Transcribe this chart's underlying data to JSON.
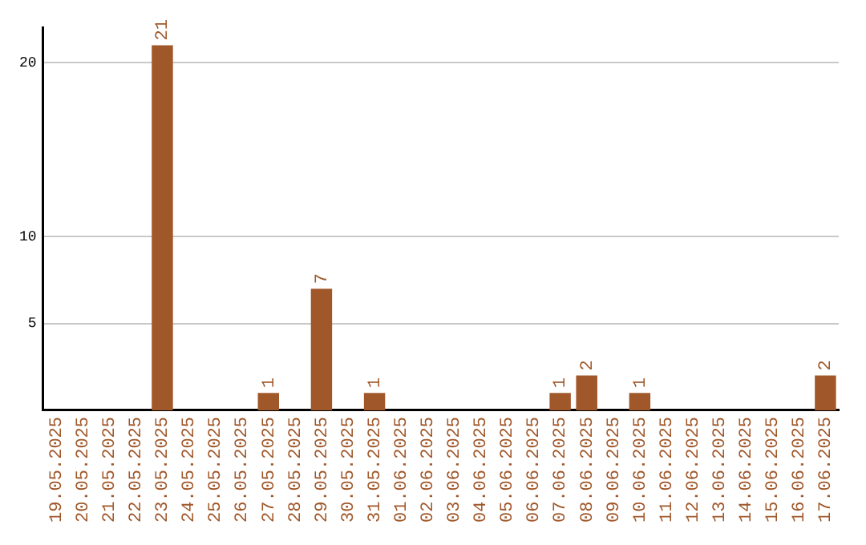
{
  "chart_data": {
    "type": "bar",
    "categories": [
      "19.05.2025",
      "20.05.2025",
      "21.05.2025",
      "22.05.2025",
      "23.05.2025",
      "24.05.2025",
      "25.05.2025",
      "26.05.2025",
      "27.05.2025",
      "28.05.2025",
      "29.05.2025",
      "30.05.2025",
      "31.05.2025",
      "01.06.2025",
      "02.06.2025",
      "03.06.2025",
      "04.06.2025",
      "05.06.2025",
      "06.06.2025",
      "07.06.2025",
      "08.06.2025",
      "09.06.2025",
      "10.06.2025",
      "11.06.2025",
      "12.06.2025",
      "13.06.2025",
      "14.06.2025",
      "15.06.2025",
      "16.06.2025",
      "17.06.2025"
    ],
    "values": [
      0,
      0,
      0,
      0,
      21,
      0,
      0,
      0,
      1,
      0,
      7,
      0,
      1,
      0,
      0,
      0,
      0,
      0,
      0,
      1,
      2,
      0,
      1,
      0,
      0,
      0,
      0,
      0,
      0,
      2
    ],
    "value_labels": [
      null,
      null,
      null,
      null,
      "21",
      null,
      null,
      null,
      "1",
      null,
      "7",
      null,
      "1",
      null,
      null,
      null,
      null,
      null,
      null,
      "1",
      "2",
      null,
      "1",
      null,
      null,
      null,
      null,
      null,
      null,
      "2"
    ],
    "color": "#a0582a",
    "ylim": [
      0,
      22
    ],
    "yticks": [
      5,
      10,
      20
    ],
    "grid": "y",
    "legend": false
  }
}
